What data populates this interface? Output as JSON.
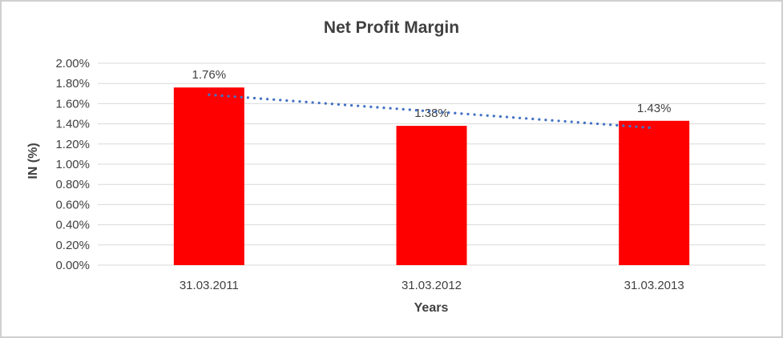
{
  "frame": {
    "border_color": "#cfcfcf",
    "background": "#ffffff"
  },
  "chart_data": {
    "type": "bar",
    "title": "Net Profit Margin",
    "xlabel": "Years",
    "ylabel": "IN (%)",
    "categories": [
      "31.03.2011",
      "31.03.2012",
      "31.03.2013"
    ],
    "values": [
      1.76,
      1.38,
      1.43
    ],
    "data_labels": [
      "1.76%",
      "1.38%",
      "1.43%"
    ],
    "y_ticks": [
      "2.00%",
      "1.80%",
      "1.60%",
      "1.40%",
      "1.20%",
      "1.00%",
      "0.80%",
      "0.60%",
      "0.40%",
      "0.20%",
      "0.00%"
    ],
    "ylim": [
      0,
      2.0
    ],
    "y_step": 0.2,
    "grid": true,
    "legend": "none",
    "bar_color": "#ff0000",
    "trendline": {
      "type": "linear",
      "style": "dotted",
      "color": "#4472c4"
    },
    "gridline_color": "#d9d9d9",
    "text_color": "#404040"
  }
}
